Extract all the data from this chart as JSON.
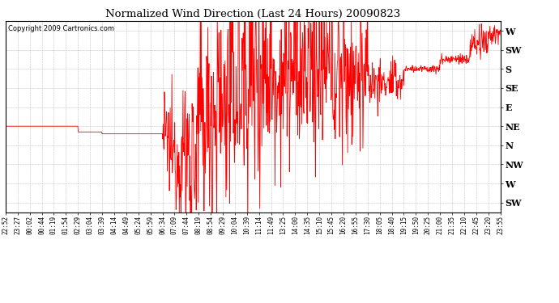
{
  "title": "Normalized Wind Direction (Last 24 Hours) 20090823",
  "copyright": "Copyright 2009 Cartronics.com",
  "line_color": "#ff0000",
  "bg_color": "#ffffff",
  "grid_color": "#bbbbbb",
  "ytick_labels": [
    "W",
    "SW",
    "S",
    "SE",
    "E",
    "NE",
    "N",
    "NW",
    "W",
    "SW"
  ],
  "ytick_values": [
    10,
    9,
    8,
    7,
    6,
    5,
    4,
    3,
    2,
    1
  ],
  "ylim": [
    0.5,
    10.5
  ],
  "xtick_labels": [
    "22:52",
    "23:27",
    "00:02",
    "00:44",
    "01:19",
    "01:54",
    "02:29",
    "03:04",
    "03:39",
    "04:14",
    "04:49",
    "05:24",
    "05:59",
    "06:34",
    "07:09",
    "07:44",
    "08:19",
    "08:54",
    "09:29",
    "10:04",
    "10:39",
    "11:14",
    "11:49",
    "13:25",
    "14:00",
    "14:35",
    "15:10",
    "15:45",
    "16:20",
    "16:55",
    "17:30",
    "18:05",
    "18:40",
    "19:15",
    "19:50",
    "20:25",
    "21:00",
    "21:35",
    "22:10",
    "22:45",
    "23:20",
    "23:55"
  ],
  "figsize": [
    6.9,
    3.75
  ],
  "dpi": 100
}
